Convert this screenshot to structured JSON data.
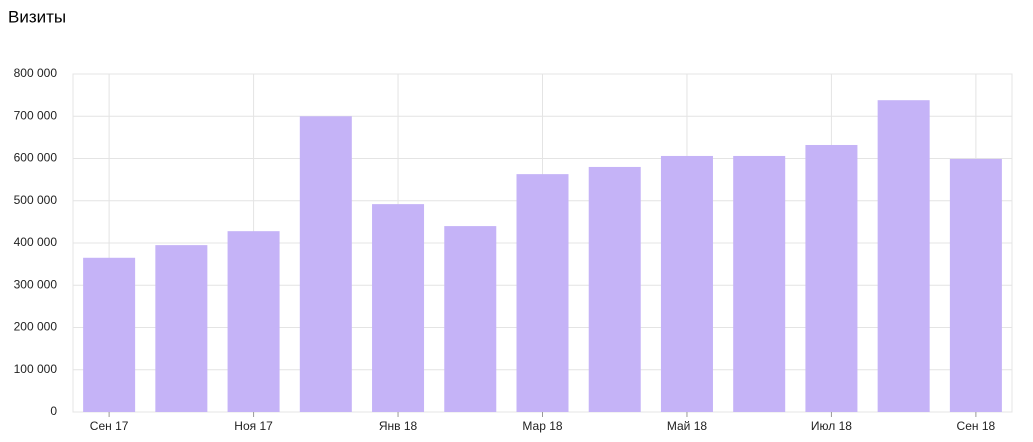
{
  "chart_data": {
    "type": "bar",
    "title": "Визиты",
    "categories": [
      "Сен 17",
      null,
      "Ноя 17",
      null,
      "Янв 18",
      null,
      "Мар 18",
      null,
      "Май 18",
      null,
      "Июл 18",
      null,
      "Сен 18"
    ],
    "values": [
      365000,
      395000,
      428000,
      700000,
      492000,
      440000,
      563000,
      580000,
      606000,
      606000,
      632000,
      738000,
      599000
    ],
    "color": "#c5b3f7",
    "ylim": [
      0,
      800000
    ],
    "yticks": [
      0,
      {
        "value": 100000,
        "label": "100 000"
      },
      {
        "value": 200000,
        "label": "200 000"
      },
      {
        "value": 300000,
        "label": "300 000"
      },
      {
        "value": 400000,
        "label": "400 000"
      },
      {
        "value": 500000,
        "label": "500 000"
      },
      {
        "value": 600000,
        "label": "600 000"
      },
      {
        "value": 700000,
        "label": "700 000"
      },
      {
        "value": 800000,
        "label": "800 000"
      }
    ],
    "grid": true
  }
}
